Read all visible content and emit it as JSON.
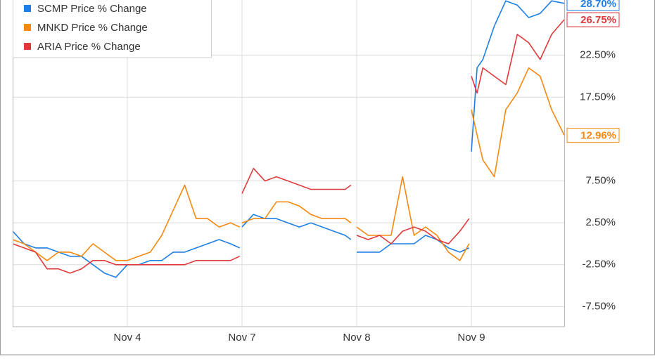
{
  "chart_data": {
    "type": "line",
    "x": [
      0,
      0.1,
      0.2,
      0.3,
      0.4,
      0.5,
      0.6,
      0.7,
      0.8,
      0.9,
      1,
      1.1,
      1.2,
      1.3,
      1.4,
      1.5,
      1.6,
      1.7,
      1.8,
      1.9,
      1.98,
      1.99,
      2,
      2.1,
      2.2,
      2.3,
      2.4,
      2.5,
      2.6,
      2.7,
      2.8,
      2.9,
      2.95,
      2.97,
      3,
      3.1,
      3.2,
      3.3,
      3.4,
      3.5,
      3.6,
      3.7,
      3.8,
      3.9,
      3.98,
      3.99,
      4,
      4.05,
      4.1,
      4.2,
      4.3,
      4.4,
      4.5,
      4.6,
      4.7,
      4.81
    ],
    "xlim": [
      0,
      4.81
    ],
    "xticks": [
      {
        "value": 1,
        "label": "Nov 4"
      },
      {
        "value": 2,
        "label": "Nov 7"
      },
      {
        "value": 3,
        "label": "Nov 8"
      },
      {
        "value": 4,
        "label": "Nov 9"
      }
    ],
    "ylim": [
      -9.9,
      29.1
    ],
    "yticks": [
      {
        "value": -7.5,
        "label": "-7.50%"
      },
      {
        "value": -2.5,
        "label": "-2.50%"
      },
      {
        "value": 2.5,
        "label": "2.50%"
      },
      {
        "value": 7.5,
        "label": "7.50%"
      },
      {
        "value": 17.5,
        "label": "17.50%"
      },
      {
        "value": 22.5,
        "label": "22.50%"
      }
    ],
    "grid": true,
    "legend": "top-left",
    "series": [
      {
        "name": "SCMP Price % Change",
        "color": "#1f7fe6",
        "end_label": "28.70%",
        "values": [
          1.5,
          0,
          -0.5,
          -0.5,
          -1,
          -1.5,
          -1.5,
          -2.5,
          -3.5,
          -4,
          -2.5,
          -2.5,
          -2,
          -2,
          -1,
          -1,
          -0.5,
          0,
          0.5,
          0,
          -0.5,
          null,
          2,
          3.5,
          3,
          3,
          2.5,
          2,
          2.5,
          2,
          1.5,
          1,
          0.5,
          null,
          -1,
          -1,
          -1,
          0,
          0,
          0,
          1,
          0.5,
          -0.5,
          -1,
          -0.5,
          null,
          11,
          21,
          22,
          26,
          29,
          28.5,
          27,
          27.5,
          29,
          28.7
        ]
      },
      {
        "name": "MNKD Price % Change",
        "color": "#f7880f",
        "end_label": "12.96%",
        "values": [
          0.5,
          0,
          -1,
          -2,
          -1,
          -1,
          -1.5,
          0,
          -1,
          -2,
          -2,
          -1.5,
          -1,
          1,
          4,
          7,
          3,
          3,
          2,
          2.5,
          2,
          null,
          2.5,
          3,
          3,
          5,
          5,
          4.5,
          3.5,
          3,
          3,
          3,
          2.5,
          null,
          2,
          1,
          1,
          1,
          8,
          1,
          2,
          1,
          -1,
          -2,
          0,
          null,
          16,
          13,
          10,
          8,
          16,
          18,
          21,
          20,
          16,
          12.96
        ]
      },
      {
        "name": "ARIA Price % Change",
        "color": "#e0393b",
        "end_label": "26.75%",
        "values": [
          0,
          -0.5,
          -1,
          -3,
          -3,
          -3.5,
          -3,
          -2,
          -2,
          -2.5,
          -2.5,
          -2.5,
          -2.5,
          -2.5,
          -2.5,
          -2.5,
          -2,
          -2,
          -2,
          -2,
          -1.5,
          null,
          6,
          9,
          7.5,
          8,
          7.5,
          7,
          6.5,
          6.5,
          6.5,
          6.5,
          7,
          null,
          1,
          0.5,
          1,
          0,
          1.5,
          2,
          1.5,
          0.5,
          0,
          1.5,
          3,
          null,
          20,
          18,
          21,
          20,
          19,
          25,
          24,
          22,
          25,
          26.75
        ]
      }
    ]
  }
}
